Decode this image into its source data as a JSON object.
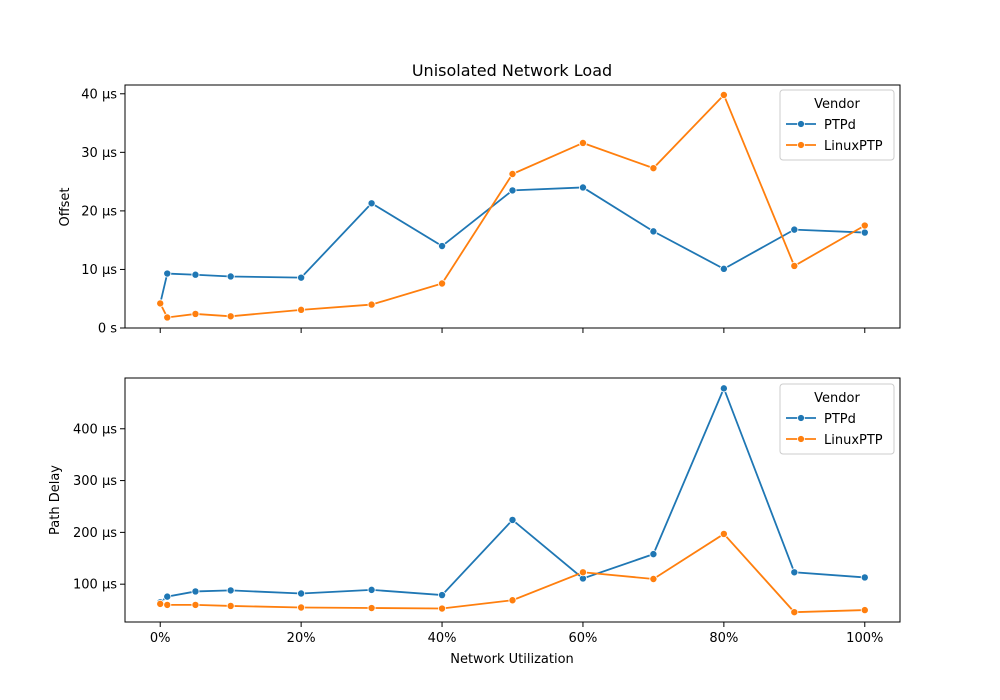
{
  "chart_data": [
    {
      "type": "line",
      "title": "Unisolated Network Load",
      "xlabel": "",
      "ylabel": "Offset",
      "x": [
        0,
        1,
        5,
        10,
        20,
        30,
        40,
        50,
        60,
        70,
        80,
        90,
        100
      ],
      "xlim": [
        -5,
        105
      ],
      "ylim": [
        0,
        41.5
      ],
      "x_ticks": [
        0,
        20,
        40,
        60,
        80,
        100
      ],
      "x_tick_labels": [
        "",
        "",
        "",
        "",
        "",
        ""
      ],
      "y_ticks": [
        0,
        10,
        20,
        30,
        40
      ],
      "y_tick_labels": [
        "0 s",
        "10 µs",
        "20 µs",
        "30 µs",
        "40 µs"
      ],
      "legend": {
        "title": "Vendor",
        "placement": "top-right"
      },
      "series": [
        {
          "name": "PTPd",
          "color": "#1f77b4",
          "values": [
            4.2,
            9.3,
            9.1,
            8.8,
            8.6,
            21.3,
            14.0,
            23.5,
            24.0,
            16.5,
            10.1,
            16.8,
            16.3
          ]
        },
        {
          "name": "LinuxPTP",
          "color": "#ff7f0e",
          "values": [
            4.2,
            1.8,
            2.4,
            2.0,
            3.1,
            4.0,
            7.6,
            26.3,
            31.6,
            27.3,
            39.8,
            10.6,
            17.5
          ]
        }
      ]
    },
    {
      "type": "line",
      "title": "",
      "xlabel": "Network Utilization",
      "ylabel": "Path Delay",
      "x": [
        0,
        1,
        5,
        10,
        20,
        30,
        40,
        50,
        60,
        70,
        80,
        90,
        100
      ],
      "xlim": [
        -5,
        105
      ],
      "ylim": [
        27,
        498
      ],
      "x_ticks": [
        0,
        20,
        40,
        60,
        80,
        100
      ],
      "x_tick_labels": [
        "0%",
        "20%",
        "40%",
        "60%",
        "80%",
        "100%"
      ],
      "y_ticks": [
        100,
        200,
        300,
        400
      ],
      "y_tick_labels": [
        "100 µs",
        "200 µs",
        "300 µs",
        "400 µs"
      ],
      "legend": {
        "title": "Vendor",
        "placement": "top-right"
      },
      "series": [
        {
          "name": "PTPd",
          "color": "#1f77b4",
          "values": [
            65,
            76,
            86,
            88,
            82,
            89,
            79,
            224,
            111,
            158,
            478,
            123,
            113
          ]
        },
        {
          "name": "LinuxPTP",
          "color": "#ff7f0e",
          "values": [
            62,
            60,
            60,
            58,
            55,
            54,
            53,
            69,
            123,
            110,
            197,
            46,
            50
          ]
        }
      ]
    }
  ]
}
